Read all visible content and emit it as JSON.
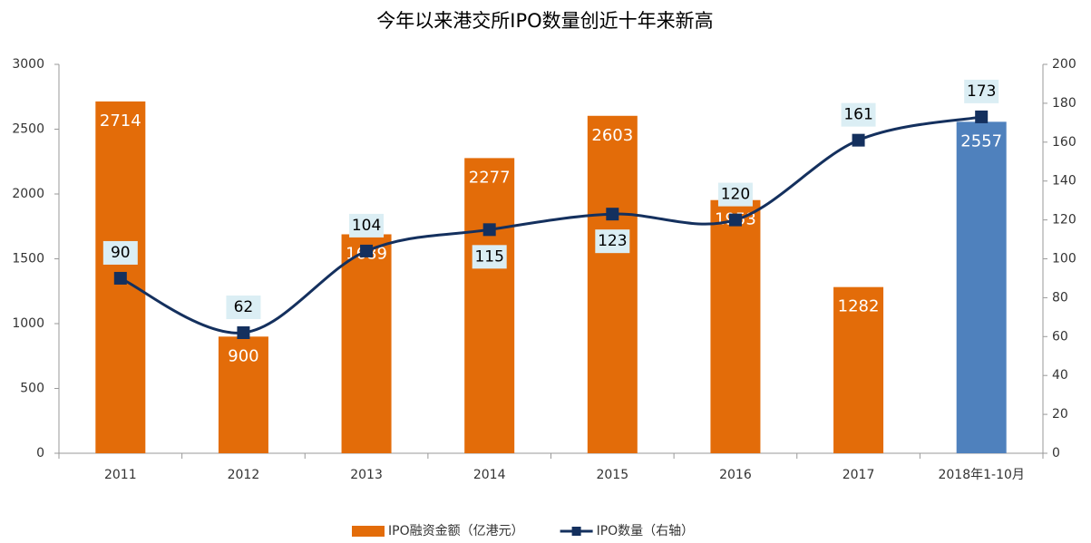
{
  "chart_data": {
    "type": "bar-line",
    "title": "今年以来港交所IPO数量创近十年来新高",
    "categories": [
      "2011",
      "2012",
      "2013",
      "2014",
      "2015",
      "2016",
      "2017",
      "2018年1-10月"
    ],
    "series": [
      {
        "name": "IPO融资金额（亿港元）",
        "type": "bar",
        "color": "#e36c09",
        "colors": [
          "#e36c09",
          "#e36c09",
          "#e36c09",
          "#e36c09",
          "#e36c09",
          "#e36c09",
          "#e36c09",
          "#4f81bd"
        ],
        "values": [
          2714,
          900,
          1689,
          2277,
          2603,
          1953,
          1282,
          2557
        ]
      },
      {
        "name": "IPO数量（右轴）",
        "type": "line",
        "axis": "y2",
        "color": "#14305e",
        "values": [
          90,
          62,
          104,
          115,
          123,
          120,
          161,
          173
        ]
      }
    ],
    "ylim": [
      0,
      3000
    ],
    "yticks": [
      0,
      500,
      1000,
      1500,
      2000,
      2500,
      3000
    ],
    "y2lim": [
      0,
      200
    ],
    "y2ticks": [
      0,
      20,
      40,
      60,
      80,
      100,
      120,
      140,
      160,
      180,
      200
    ],
    "legend": "bottom"
  }
}
